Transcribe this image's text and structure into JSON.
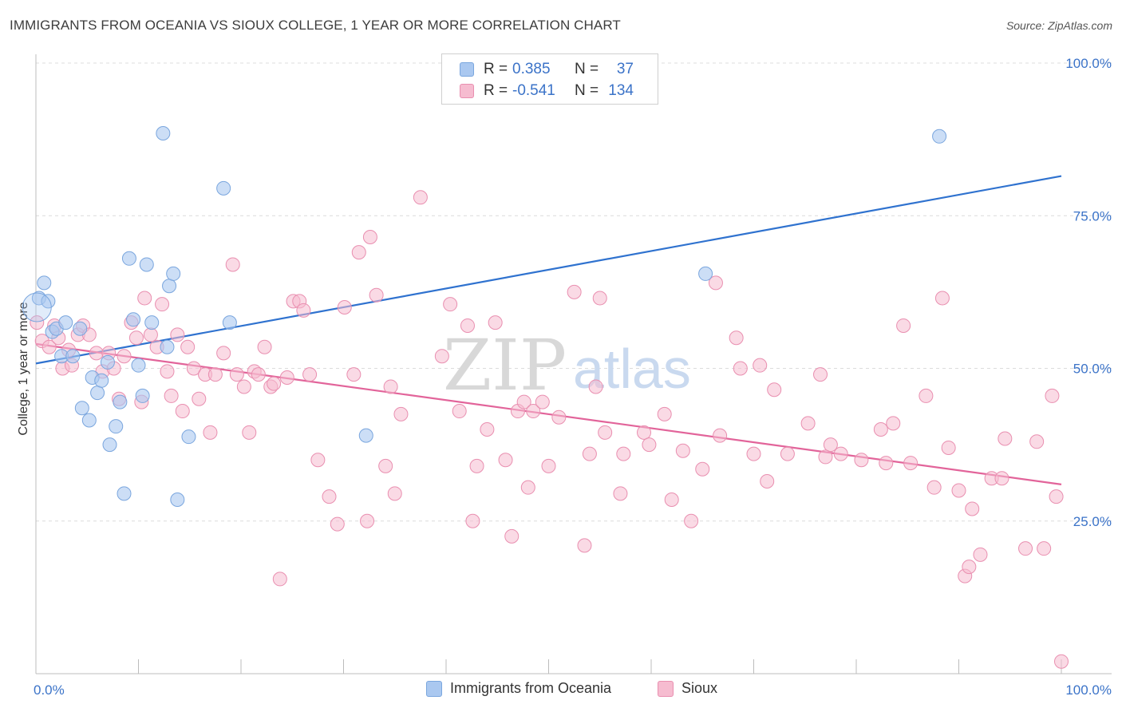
{
  "title": "IMMIGRANTS FROM OCEANIA VS SIOUX COLLEGE, 1 YEAR OR MORE CORRELATION CHART",
  "source": "Source: ZipAtlas.com",
  "watermark": {
    "zip": "ZIP",
    "atlas": "atlas"
  },
  "colors": {
    "blue_fill": "#aac8f0",
    "blue_stroke": "#7aa6de",
    "blue_line": "#2f72cf",
    "pink_fill": "#f6bcd0",
    "pink_stroke": "#e98fb0",
    "pink_line": "#e2649a",
    "tick_text": "#3b73c8"
  },
  "legend": {
    "rows": [
      {
        "r_label": "R =",
        "r_value": "0.385",
        "n_label": "N =",
        "n_value": "37",
        "color": "#aac8f0"
      },
      {
        "r_label": "R =",
        "r_value": "-0.541",
        "n_label": "N =",
        "n_value": "134",
        "color": "#f6bcd0"
      }
    ]
  },
  "bottom_legend": {
    "series1": "Immigrants from Oceania",
    "series2": "Sioux"
  },
  "chart_data": {
    "type": "scatter",
    "title": "IMMIGRANTS FROM OCEANIA VS SIOUX COLLEGE, 1 YEAR OR MORE CORRELATION CHART",
    "xlabel": "",
    "ylabel": "College, 1 year or more",
    "xlim": [
      0,
      100
    ],
    "ylim": [
      0,
      100
    ],
    "x_tick_labels": [
      "0.0%",
      "100.0%"
    ],
    "y_tick_labels": [
      "25.0%",
      "50.0%",
      "75.0%",
      "100.0%"
    ],
    "y_ticks": [
      25,
      50,
      75,
      100
    ],
    "series": [
      {
        "name": "Immigrants from Oceania",
        "R": 0.385,
        "N": 37,
        "trend": {
          "x": [
            0,
            100
          ],
          "y": [
            50.8,
            81.5
          ]
        },
        "points": [
          [
            0.3,
            61.5
          ],
          [
            0.8,
            64.0
          ],
          [
            1.2,
            61.0
          ],
          [
            1.6,
            56.0
          ],
          [
            2.0,
            56.5
          ],
          [
            2.5,
            52.0
          ],
          [
            2.9,
            57.5
          ],
          [
            3.6,
            52.0
          ],
          [
            4.3,
            56.5
          ],
          [
            4.5,
            43.5
          ],
          [
            5.2,
            41.5
          ],
          [
            5.5,
            48.5
          ],
          [
            6.0,
            46.0
          ],
          [
            6.4,
            48.0
          ],
          [
            7.0,
            51.0
          ],
          [
            7.2,
            37.5
          ],
          [
            7.8,
            40.5
          ],
          [
            8.2,
            44.5
          ],
          [
            8.6,
            29.5
          ],
          [
            9.1,
            68.0
          ],
          [
            9.5,
            58.0
          ],
          [
            10.0,
            50.5
          ],
          [
            10.4,
            45.5
          ],
          [
            10.8,
            67.0
          ],
          [
            11.3,
            57.5
          ],
          [
            12.4,
            88.5
          ],
          [
            12.8,
            53.5
          ],
          [
            13.0,
            63.5
          ],
          [
            13.4,
            65.5
          ],
          [
            13.8,
            28.5
          ],
          [
            14.9,
            38.8
          ],
          [
            18.3,
            79.5
          ],
          [
            18.9,
            57.5
          ],
          [
            32.2,
            39.0
          ],
          [
            65.3,
            65.5
          ],
          [
            88.1,
            88.0
          ],
          [
            0.1,
            60.0
          ]
        ]
      },
      {
        "name": "Sioux",
        "R": -0.541,
        "N": 134,
        "trend": {
          "x": [
            0,
            100
          ],
          "y": [
            54.0,
            31.0
          ]
        },
        "points": [
          [
            0.1,
            57.5
          ],
          [
            0.6,
            54.5
          ],
          [
            1.3,
            53.5
          ],
          [
            1.8,
            57.0
          ],
          [
            2.2,
            55.0
          ],
          [
            2.6,
            50.0
          ],
          [
            3.2,
            53.0
          ],
          [
            3.5,
            50.5
          ],
          [
            4.1,
            55.5
          ],
          [
            4.6,
            57.0
          ],
          [
            5.2,
            55.5
          ],
          [
            5.9,
            52.5
          ],
          [
            6.5,
            49.5
          ],
          [
            7.1,
            52.5
          ],
          [
            7.6,
            50.0
          ],
          [
            8.1,
            45.0
          ],
          [
            8.6,
            52.0
          ],
          [
            9.3,
            57.5
          ],
          [
            9.8,
            55.0
          ],
          [
            10.3,
            44.5
          ],
          [
            10.6,
            61.5
          ],
          [
            11.2,
            55.5
          ],
          [
            11.8,
            53.5
          ],
          [
            12.3,
            60.5
          ],
          [
            12.8,
            49.5
          ],
          [
            13.2,
            45.5
          ],
          [
            13.8,
            55.5
          ],
          [
            14.3,
            43.0
          ],
          [
            14.8,
            53.5
          ],
          [
            15.4,
            50.0
          ],
          [
            15.9,
            45.0
          ],
          [
            16.5,
            49.0
          ],
          [
            17.0,
            39.5
          ],
          [
            17.5,
            49.0
          ],
          [
            18.3,
            52.5
          ],
          [
            19.2,
            67.0
          ],
          [
            19.6,
            49.0
          ],
          [
            20.3,
            47.0
          ],
          [
            20.8,
            39.5
          ],
          [
            21.3,
            49.5
          ],
          [
            21.7,
            49.0
          ],
          [
            22.3,
            53.5
          ],
          [
            22.9,
            47.0
          ],
          [
            23.2,
            47.5
          ],
          [
            23.8,
            15.5
          ],
          [
            24.5,
            48.5
          ],
          [
            25.1,
            61.0
          ],
          [
            25.7,
            61.0
          ],
          [
            26.1,
            59.5
          ],
          [
            26.7,
            49.0
          ],
          [
            27.5,
            35.0
          ],
          [
            28.6,
            29.0
          ],
          [
            29.4,
            24.5
          ],
          [
            30.1,
            60.0
          ],
          [
            31.0,
            49.0
          ],
          [
            31.5,
            69.0
          ],
          [
            32.3,
            25.0
          ],
          [
            32.6,
            71.5
          ],
          [
            33.2,
            62.0
          ],
          [
            34.1,
            34.0
          ],
          [
            34.6,
            47.0
          ],
          [
            35.0,
            29.5
          ],
          [
            35.6,
            42.5
          ],
          [
            37.5,
            78.0
          ],
          [
            39.6,
            52.0
          ],
          [
            40.4,
            60.5
          ],
          [
            41.3,
            43.0
          ],
          [
            42.1,
            57.0
          ],
          [
            42.6,
            25.0
          ],
          [
            43.0,
            34.0
          ],
          [
            44.0,
            40.0
          ],
          [
            44.8,
            57.5
          ],
          [
            46.4,
            22.5
          ],
          [
            47.0,
            43.0
          ],
          [
            47.6,
            44.5
          ],
          [
            48.0,
            30.5
          ],
          [
            48.5,
            43.0
          ],
          [
            49.4,
            44.5
          ],
          [
            50.0,
            34.0
          ],
          [
            51.0,
            42.0
          ],
          [
            52.5,
            62.5
          ],
          [
            53.5,
            21.0
          ],
          [
            54.0,
            36.0
          ],
          [
            54.6,
            47.0
          ],
          [
            55.0,
            61.5
          ],
          [
            55.5,
            39.5
          ],
          [
            57.0,
            29.5
          ],
          [
            59.3,
            39.5
          ],
          [
            59.8,
            37.5
          ],
          [
            61.3,
            42.5
          ],
          [
            62.0,
            28.5
          ],
          [
            63.1,
            36.5
          ],
          [
            63.9,
            25.0
          ],
          [
            65.0,
            33.5
          ],
          [
            66.3,
            64.0
          ],
          [
            66.7,
            39.0
          ],
          [
            68.3,
            55.0
          ],
          [
            68.7,
            50.0
          ],
          [
            70.0,
            36.0
          ],
          [
            70.6,
            50.5
          ],
          [
            71.3,
            31.5
          ],
          [
            72.0,
            46.5
          ],
          [
            73.3,
            36.0
          ],
          [
            75.3,
            41.0
          ],
          [
            76.5,
            49.0
          ],
          [
            77.0,
            35.5
          ],
          [
            77.5,
            37.5
          ],
          [
            78.5,
            36.0
          ],
          [
            80.5,
            35.0
          ],
          [
            82.4,
            40.0
          ],
          [
            82.9,
            34.5
          ],
          [
            83.6,
            41.0
          ],
          [
            84.6,
            57.0
          ],
          [
            85.3,
            34.5
          ],
          [
            86.8,
            45.5
          ],
          [
            87.6,
            30.5
          ],
          [
            88.4,
            61.5
          ],
          [
            89.0,
            37.0
          ],
          [
            90.0,
            30.0
          ],
          [
            90.6,
            16.0
          ],
          [
            91.0,
            17.5
          ],
          [
            91.3,
            27.0
          ],
          [
            92.1,
            19.5
          ],
          [
            93.2,
            32.0
          ],
          [
            94.2,
            32.0
          ],
          [
            94.5,
            38.5
          ],
          [
            96.5,
            20.5
          ],
          [
            97.6,
            38.0
          ],
          [
            98.3,
            20.5
          ],
          [
            99.1,
            45.5
          ],
          [
            99.5,
            29.0
          ],
          [
            100.0,
            2.0
          ],
          [
            57.3,
            36.0
          ],
          [
            45.8,
            35.0
          ]
        ]
      }
    ]
  }
}
